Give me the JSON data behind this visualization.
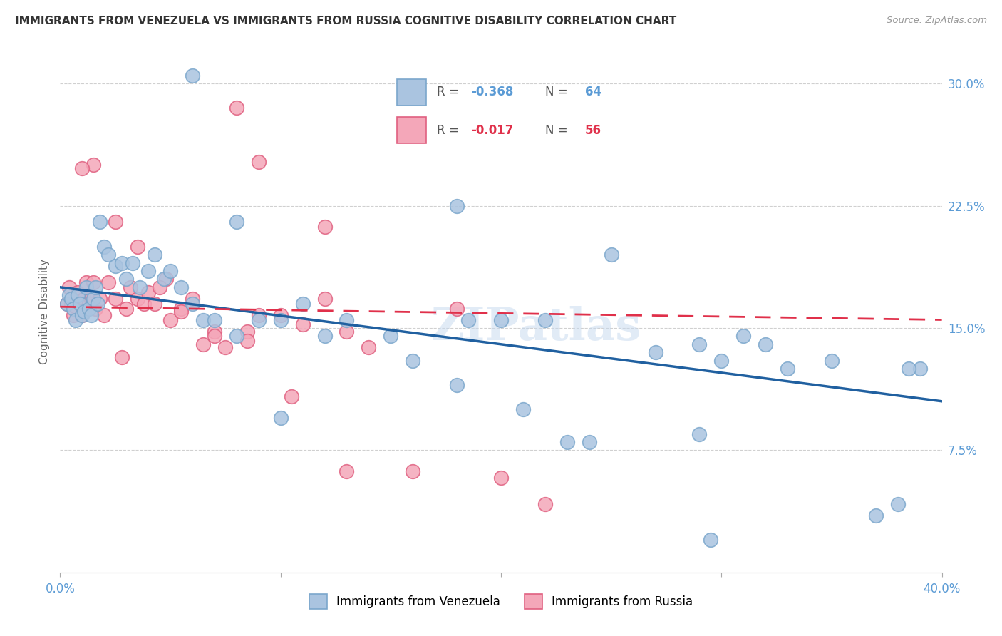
{
  "title": "IMMIGRANTS FROM VENEZUELA VS IMMIGRANTS FROM RUSSIA COGNITIVE DISABILITY CORRELATION CHART",
  "source": "Source: ZipAtlas.com",
  "ylabel": "Cognitive Disability",
  "xlim": [
    0.0,
    0.4
  ],
  "ylim": [
    0.0,
    0.32
  ],
  "xtick_positions": [
    0.0,
    0.1,
    0.2,
    0.3,
    0.4
  ],
  "xticklabels": [
    "0.0%",
    "",
    "",
    "",
    "40.0%"
  ],
  "ytick_positions": [
    0.075,
    0.15,
    0.225,
    0.3
  ],
  "ytick_labels": [
    "7.5%",
    "15.0%",
    "22.5%",
    "30.0%"
  ],
  "grid_color": "#d0d0d0",
  "background_color": "#ffffff",
  "venezuela_color": "#aac4e0",
  "russia_color": "#f4a7b9",
  "venezuela_edge": "#7ba7cc",
  "russia_edge": "#e06080",
  "trend_venezuela_color": "#2060a0",
  "trend_russia_color": "#e0304a",
  "R_venezuela": -0.368,
  "N_venezuela": 64,
  "R_russia": -0.017,
  "N_russia": 56,
  "watermark": "ZIPatlas",
  "legend_label_venezuela": "Immigrants from Venezuela",
  "legend_label_russia": "Immigrants from Russia",
  "venezuela_x": [
    0.003,
    0.004,
    0.005,
    0.006,
    0.007,
    0.008,
    0.009,
    0.01,
    0.011,
    0.012,
    0.013,
    0.014,
    0.015,
    0.016,
    0.017,
    0.018,
    0.02,
    0.022,
    0.025,
    0.028,
    0.03,
    0.033,
    0.036,
    0.04,
    0.043,
    0.047,
    0.05,
    0.055,
    0.06,
    0.065,
    0.07,
    0.08,
    0.09,
    0.1,
    0.11,
    0.12,
    0.13,
    0.15,
    0.16,
    0.18,
    0.2,
    0.21,
    0.22,
    0.24,
    0.27,
    0.29,
    0.3,
    0.31,
    0.33,
    0.35,
    0.37,
    0.38,
    0.39,
    0.25,
    0.18,
    0.08,
    0.06,
    0.295,
    0.32,
    0.385,
    0.23,
    0.1,
    0.185,
    0.29
  ],
  "venezuela_y": [
    0.165,
    0.17,
    0.168,
    0.162,
    0.155,
    0.17,
    0.165,
    0.158,
    0.16,
    0.175,
    0.162,
    0.158,
    0.168,
    0.175,
    0.165,
    0.215,
    0.2,
    0.195,
    0.188,
    0.19,
    0.18,
    0.19,
    0.175,
    0.185,
    0.195,
    0.18,
    0.185,
    0.175,
    0.165,
    0.155,
    0.155,
    0.145,
    0.155,
    0.155,
    0.165,
    0.145,
    0.155,
    0.145,
    0.13,
    0.115,
    0.155,
    0.1,
    0.155,
    0.08,
    0.135,
    0.14,
    0.13,
    0.145,
    0.125,
    0.13,
    0.035,
    0.042,
    0.125,
    0.195,
    0.225,
    0.215,
    0.305,
    0.02,
    0.14,
    0.125,
    0.08,
    0.095,
    0.155,
    0.085
  ],
  "russia_x": [
    0.003,
    0.004,
    0.005,
    0.006,
    0.007,
    0.008,
    0.009,
    0.01,
    0.011,
    0.012,
    0.013,
    0.014,
    0.015,
    0.016,
    0.018,
    0.02,
    0.022,
    0.025,
    0.028,
    0.03,
    0.032,
    0.035,
    0.038,
    0.04,
    0.043,
    0.048,
    0.055,
    0.06,
    0.065,
    0.07,
    0.075,
    0.085,
    0.09,
    0.1,
    0.11,
    0.12,
    0.13,
    0.14,
    0.08,
    0.09,
    0.12,
    0.05,
    0.035,
    0.025,
    0.015,
    0.01,
    0.16,
    0.18,
    0.2,
    0.22,
    0.13,
    0.105,
    0.07,
    0.085,
    0.045,
    0.055
  ],
  "russia_y": [
    0.165,
    0.175,
    0.165,
    0.158,
    0.163,
    0.172,
    0.165,
    0.158,
    0.168,
    0.178,
    0.165,
    0.168,
    0.178,
    0.162,
    0.168,
    0.158,
    0.178,
    0.168,
    0.132,
    0.162,
    0.175,
    0.168,
    0.165,
    0.172,
    0.165,
    0.18,
    0.162,
    0.168,
    0.14,
    0.148,
    0.138,
    0.148,
    0.158,
    0.158,
    0.152,
    0.168,
    0.148,
    0.138,
    0.285,
    0.252,
    0.212,
    0.155,
    0.2,
    0.215,
    0.25,
    0.248,
    0.062,
    0.162,
    0.058,
    0.042,
    0.062,
    0.108,
    0.145,
    0.142,
    0.175,
    0.16
  ]
}
